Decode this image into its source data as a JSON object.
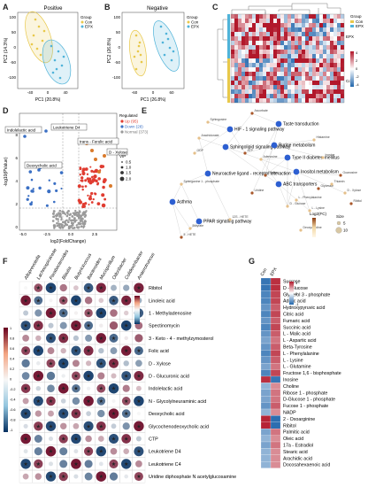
{
  "panels": {
    "A": {
      "letter": "A",
      "title": "Positive",
      "xlabel": "PC1 (20.8%)",
      "ylabel": "PC2 (14.3%)",
      "xticks": [
        "-40",
        "0",
        "40"
      ],
      "yticks": [
        "100",
        "50",
        "0",
        "-50",
        "-100"
      ],
      "legend_title": "Group",
      "legend": [
        "Con",
        "EPX"
      ]
    },
    "B": {
      "letter": "B",
      "title": "Negative",
      "xlabel": "PC1 (26.8%)",
      "ylabel": "PC2 (26.8%)",
      "xticks": [
        "-60",
        "0",
        "60"
      ],
      "yticks": [
        "100",
        "50",
        "0",
        "-50",
        "-100"
      ],
      "legend_title": "Group",
      "legend": [
        "Con",
        "EPX"
      ]
    },
    "C": {
      "letter": "C",
      "row_labels": [
        "EPX",
        "Con"
      ],
      "legend_title": "Group",
      "legend": [
        "Con",
        "EPX"
      ],
      "scale_ticks": [
        "4",
        "2",
        "0",
        "-2",
        "-4"
      ]
    },
    "D": {
      "letter": "D",
      "xlabel": "log2(FoldChange)",
      "ylabel": "-log10(PValue)",
      "xticks": [
        "-5.0",
        "-2.5",
        "0.0",
        "2.5"
      ],
      "yticks": [
        "8",
        "6",
        "4",
        "2",
        "0"
      ],
      "annotations": [
        "Indolelactic acid",
        "Leukotriene D4",
        "trans - Ferulic acid",
        "D - Xylose",
        "Deoxycholic acid"
      ],
      "legend_title": "Regulated",
      "legend": [
        "Up (95)",
        "Down (28)",
        "Normal (373)"
      ],
      "vip_title": "VIP",
      "vip_values": [
        "0.5",
        "1.0",
        "1.5",
        "2.0"
      ]
    },
    "E": {
      "letter": "E",
      "pathways": [
        "HIF - 1 signaling pathway",
        "Taste transduction",
        "Sphingolipid signaling pathway",
        "Purine metabolism",
        "Type II diabetes mellitus",
        "Neuroactive ligand - receptor interaction",
        "Asthma",
        "ABC transporters",
        "Inositol metabolism",
        "PPAR signaling pathway"
      ],
      "compounds": [
        "Ascorbate",
        "Sphingosine",
        "Arachidonate",
        "ATP",
        "Adenosine",
        "Inosine",
        "Choline",
        "L - Phenylalanine",
        "D - Xylose",
        "Glycerate",
        "12S - HETE",
        "Deoxycytidine",
        "5 - HETE",
        "GDP",
        "Sphinganine 1 - phosphate",
        "Uridine",
        "L - Lysine",
        "Thiamin",
        "Guanosine",
        "Histamine",
        "D - Glucose",
        "Ribitol",
        "Butyrate"
      ],
      "size_title": "Size",
      "size_values": [
        "5",
        "10"
      ],
      "color_title": "Log2(FC)"
    },
    "F": {
      "letter": "F",
      "columns": [
        "Alloprevotella",
        "Lachnospiraceae",
        "Parabacteroides",
        "Blautia",
        "Butyricicoccus",
        "Bacteroides",
        "Mucispirillum",
        "Odoribacter",
        "Colidextribacter",
        "Anaerotruncus"
      ],
      "rows": [
        "Ribitol",
        "Linoleic acid",
        "1 - Methyladenosine",
        "Spectinomycin",
        "3 - Keto - 4 - methylzymosterol",
        "Folic acid",
        "D - Xylose",
        "D - Glucuronic acid",
        "Indolelactic acid",
        "N - Glycolylneuraminic acid",
        "Deoxycholic acid",
        "Glycochenodeoxycholic acid",
        "CTP",
        "Leukotriene D4",
        "Leukotriene C4",
        "Uridine diphosphate N acetylglucosamine"
      ],
      "scale_ticks": [
        "1",
        "0.8",
        "0.6",
        "0.4",
        "0.2",
        "0",
        "-0.2",
        "-0.4",
        "-0.6",
        "-0.8",
        "-1"
      ]
    },
    "G": {
      "letter": "G",
      "columns": [
        "Con",
        "EPX"
      ],
      "scale_ticks": [
        "1",
        "0",
        "-1"
      ],
      "rows": [
        "Sucrose",
        "D - Glucose",
        "Glycerol 3 - phosphate",
        "Adipic acid",
        "Hydroxypyruvic acid",
        "Citric acid",
        "Fumaric acid",
        "Succinic acid",
        "L - Malic acid",
        "L - Aspartic acid",
        "Beta-Tyrosine",
        "L - Phenylalanine",
        "L - Lysine",
        "L - Glutamine",
        "Fructose 1,6 - bisphosphate",
        "Inosine",
        "Choline",
        "Ribose 1 - phosphate",
        "D-Glucose 1 - phosphate",
        "Fucose 1 - phosphate",
        "NADP",
        "2 - Oxoarginine",
        "Ribitol",
        "Palmitic acid",
        "Oleic acid",
        "17a - Estradiol",
        "Stearic acid",
        "Arachidic acid",
        "Docosahexaenoic acid"
      ],
      "values": [
        [
          -0.9,
          0.9
        ],
        [
          -0.9,
          0.9
        ],
        [
          -0.8,
          0.8
        ],
        [
          -0.8,
          0.8
        ],
        [
          -0.7,
          0.7
        ],
        [
          -0.8,
          0.8
        ],
        [
          -0.7,
          0.7
        ],
        [
          -0.8,
          0.8
        ],
        [
          -0.7,
          0.7
        ],
        [
          -0.6,
          0.6
        ],
        [
          -0.7,
          0.7
        ],
        [
          -0.8,
          0.8
        ],
        [
          -0.7,
          0.7
        ],
        [
          -0.6,
          0.6
        ],
        [
          -0.8,
          0.8
        ],
        [
          0.9,
          -0.9
        ],
        [
          -0.5,
          0.5
        ],
        [
          -0.6,
          0.6
        ],
        [
          -0.6,
          0.6
        ],
        [
          -0.7,
          0.7
        ],
        [
          -0.5,
          0.5
        ],
        [
          0.95,
          -0.95
        ],
        [
          0.95,
          -0.95
        ],
        [
          -0.6,
          0.6
        ],
        [
          -0.5,
          0.5
        ],
        [
          -0.6,
          0.6
        ],
        [
          -0.5,
          0.5
        ],
        [
          -0.5,
          0.5
        ],
        [
          -0.5,
          0.5
        ]
      ]
    }
  },
  "colors": {
    "con": "#e8c84a",
    "epx": "#4fb3d9",
    "up": "#e03c31",
    "down": "#3a6fc4",
    "normal": "#9a9a9a",
    "pos": "#b2182b",
    "neg": "#2166ac"
  }
}
